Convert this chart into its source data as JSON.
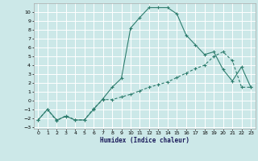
{
  "title": "",
  "xlabel": "Humidex (Indice chaleur)",
  "ylabel": "",
  "background_color": "#cce8e8",
  "grid_color": "#ffffff",
  "line_color": "#2e7d6e",
  "xlim": [
    -0.5,
    23.5
  ],
  "ylim": [
    -3.2,
    11.0
  ],
  "xticks": [
    0,
    1,
    2,
    3,
    4,
    5,
    6,
    7,
    8,
    9,
    10,
    11,
    12,
    13,
    14,
    15,
    16,
    17,
    18,
    19,
    20,
    21,
    22,
    23
  ],
  "yticks": [
    -3,
    -2,
    -1,
    0,
    1,
    2,
    3,
    4,
    5,
    6,
    7,
    8,
    9,
    10
  ],
  "curve1_x": [
    0,
    1,
    2,
    3,
    4,
    5,
    6,
    7,
    8,
    9,
    10,
    11,
    12,
    13,
    14,
    15,
    16,
    17,
    18,
    19,
    20,
    21,
    22,
    23
  ],
  "curve1_y": [
    -2.2,
    -1.0,
    -2.2,
    -1.8,
    -2.2,
    -2.2,
    -1.0,
    0.2,
    1.5,
    2.5,
    8.2,
    9.4,
    10.5,
    10.5,
    10.5,
    9.8,
    7.4,
    6.3,
    5.2,
    5.5,
    3.5,
    2.2,
    3.8,
    1.5
  ],
  "curve2_x": [
    0,
    1,
    2,
    3,
    4,
    5,
    6,
    7,
    8,
    9,
    10,
    11,
    12,
    13,
    14,
    15,
    16,
    17,
    18,
    19,
    20,
    21,
    22,
    23
  ],
  "curve2_y": [
    -2.2,
    -1.0,
    -2.3,
    -1.7,
    -2.2,
    -2.2,
    -0.9,
    0.1,
    0.1,
    0.4,
    0.7,
    1.1,
    1.5,
    1.8,
    2.1,
    2.6,
    3.1,
    3.6,
    4.0,
    5.0,
    5.5,
    4.5,
    1.5,
    1.5
  ]
}
